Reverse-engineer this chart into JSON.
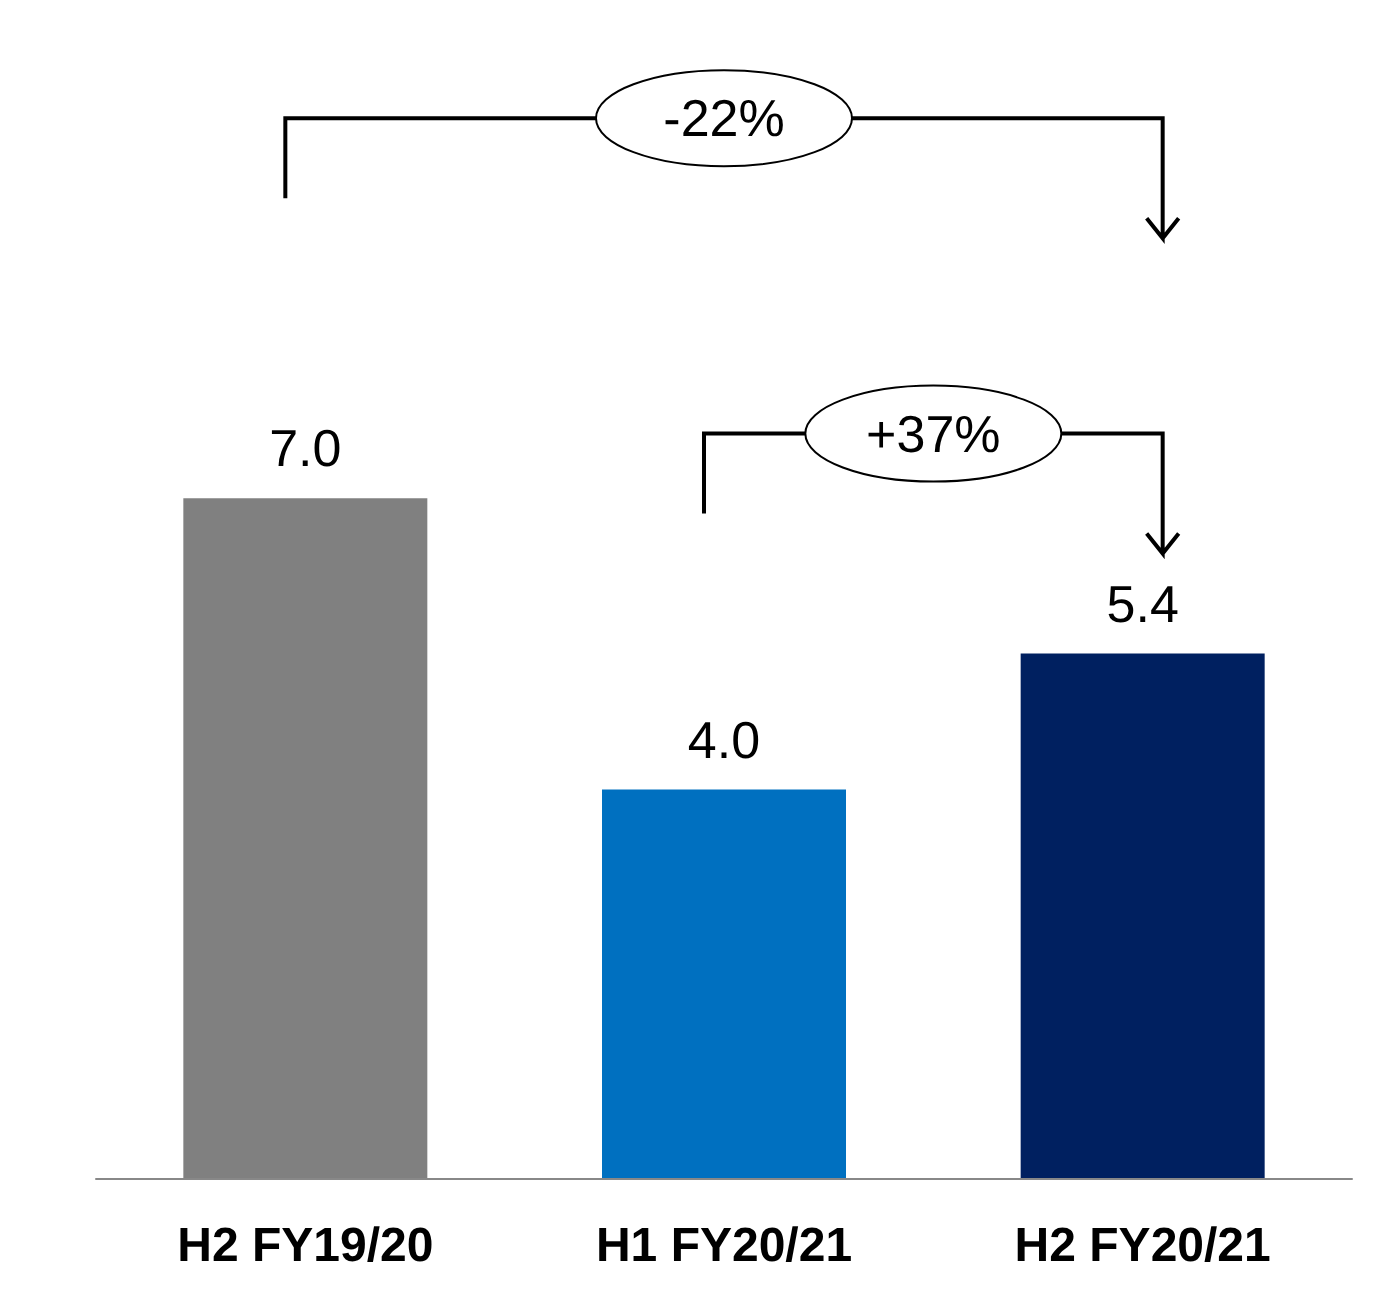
{
  "chart_data": {
    "type": "bar",
    "categories": [
      "H2 FY19/20",
      "H1 FY20/21",
      "H2 FY20/21"
    ],
    "values": [
      7.0,
      4.0,
      5.4
    ],
    "colors": [
      "#808080",
      "#0070c0",
      "#002060"
    ],
    "value_labels": [
      "7.0",
      "4.0",
      "5.4"
    ],
    "annotations": [
      "-22%",
      "+37%"
    ]
  }
}
